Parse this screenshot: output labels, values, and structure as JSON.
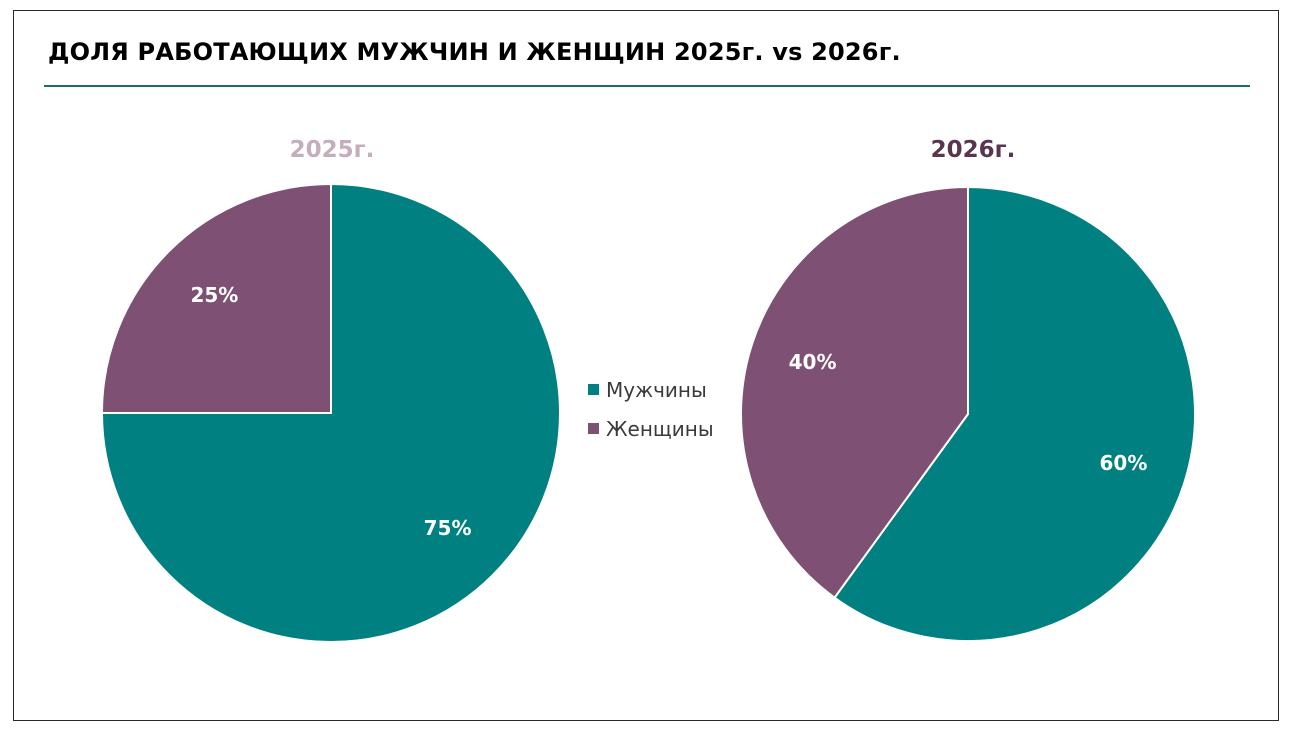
{
  "title": "ДОЛЯ РАБОТАЮЩИХ МУЖЧИН И ЖЕНЩИН 2025г. vs 2026г.",
  "colors": {
    "men": "#008080",
    "women": "#7e5073",
    "title_2025": "#c4aebd",
    "title_2026": "#5a3550",
    "rule": "#1a6f69"
  },
  "legend": {
    "men": "Мужчины",
    "women": "Женщины"
  },
  "chart_data": [
    {
      "type": "pie",
      "title": "2025г.",
      "labels": [
        "Мужчины",
        "Женщины"
      ],
      "values": [
        75,
        25
      ],
      "data_labels": [
        "75%",
        "25%"
      ]
    },
    {
      "type": "pie",
      "title": "2026г.",
      "labels": [
        "Мужчины",
        "Женщины"
      ],
      "values": [
        60,
        40
      ],
      "data_labels": [
        "60%",
        "40%"
      ]
    }
  ]
}
